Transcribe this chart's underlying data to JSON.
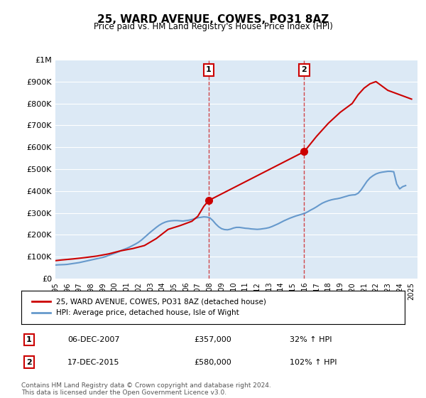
{
  "title": "25, WARD AVENUE, COWES, PO31 8AZ",
  "subtitle": "Price paid vs. HM Land Registry's House Price Index (HPI)",
  "bg_color": "#dce9f5",
  "plot_bg_color": "#dce9f5",
  "red_line_color": "#cc0000",
  "blue_line_color": "#6699cc",
  "marker_color": "#cc0000",
  "marker_box_color": "#cc0000",
  "ylim": [
    0,
    1000000
  ],
  "xlim_start": 1995.0,
  "xlim_end": 2025.5,
  "yticks": [
    0,
    100000,
    200000,
    300000,
    400000,
    500000,
    600000,
    700000,
    800000,
    900000,
    1000000
  ],
  "ytick_labels": [
    "£0",
    "£100K",
    "£200K",
    "£300K",
    "£400K",
    "£500K",
    "£600K",
    "£700K",
    "£800K",
    "£900K",
    "£1M"
  ],
  "xtick_labels": [
    "1995",
    "1996",
    "1997",
    "1998",
    "1999",
    "2000",
    "2001",
    "2002",
    "2003",
    "2004",
    "2005",
    "2006",
    "2007",
    "2008",
    "2009",
    "2010",
    "2011",
    "2012",
    "2013",
    "2014",
    "2015",
    "2016",
    "2017",
    "2018",
    "2019",
    "2020",
    "2021",
    "2022",
    "2023",
    "2024",
    "2025"
  ],
  "marker1_x": 2007.92,
  "marker1_y": 357000,
  "marker1_label": "1",
  "marker1_date": "06-DEC-2007",
  "marker1_price": "£357,000",
  "marker1_hpi": "32% ↑ HPI",
  "marker2_x": 2015.96,
  "marker2_y": 580000,
  "marker2_label": "2",
  "marker2_date": "17-DEC-2015",
  "marker2_price": "£580,000",
  "marker2_hpi": "102% ↑ HPI",
  "legend_line1": "25, WARD AVENUE, COWES, PO31 8AZ (detached house)",
  "legend_line2": "HPI: Average price, detached house, Isle of Wight",
  "footer": "Contains HM Land Registry data © Crown copyright and database right 2024.\nThis data is licensed under the Open Government Licence v3.0.",
  "hpi_data_x": [
    1995.0,
    1995.25,
    1995.5,
    1995.75,
    1996.0,
    1996.25,
    1996.5,
    1996.75,
    1997.0,
    1997.25,
    1997.5,
    1997.75,
    1998.0,
    1998.25,
    1998.5,
    1998.75,
    1999.0,
    1999.25,
    1999.5,
    1999.75,
    2000.0,
    2000.25,
    2000.5,
    2000.75,
    2001.0,
    2001.25,
    2001.5,
    2001.75,
    2002.0,
    2002.25,
    2002.5,
    2002.75,
    2003.0,
    2003.25,
    2003.5,
    2003.75,
    2004.0,
    2004.25,
    2004.5,
    2004.75,
    2005.0,
    2005.25,
    2005.5,
    2005.75,
    2006.0,
    2006.25,
    2006.5,
    2006.75,
    2007.0,
    2007.25,
    2007.5,
    2007.75,
    2008.0,
    2008.25,
    2008.5,
    2008.75,
    2009.0,
    2009.25,
    2009.5,
    2009.75,
    2010.0,
    2010.25,
    2010.5,
    2010.75,
    2011.0,
    2011.25,
    2011.5,
    2011.75,
    2012.0,
    2012.25,
    2012.5,
    2012.75,
    2013.0,
    2013.25,
    2013.5,
    2013.75,
    2014.0,
    2014.25,
    2014.5,
    2014.75,
    2015.0,
    2015.25,
    2015.5,
    2015.75,
    2016.0,
    2016.25,
    2016.5,
    2016.75,
    2017.0,
    2017.25,
    2017.5,
    2017.75,
    2018.0,
    2018.25,
    2018.5,
    2018.75,
    2019.0,
    2019.25,
    2019.5,
    2019.75,
    2020.0,
    2020.25,
    2020.5,
    2020.75,
    2021.0,
    2021.25,
    2021.5,
    2021.75,
    2022.0,
    2022.25,
    2022.5,
    2022.75,
    2023.0,
    2023.25,
    2023.5,
    2023.75,
    2024.0,
    2024.25,
    2024.5
  ],
  "hpi_data_y": [
    62000,
    63000,
    63500,
    64000,
    65000,
    67000,
    69000,
    71000,
    73000,
    76000,
    79000,
    82000,
    85000,
    88000,
    91000,
    94000,
    97000,
    101000,
    106000,
    111000,
    116000,
    121000,
    127000,
    133000,
    138000,
    144000,
    151000,
    158000,
    166000,
    176000,
    188000,
    200000,
    212000,
    223000,
    234000,
    244000,
    252000,
    258000,
    262000,
    264000,
    265000,
    265000,
    264000,
    263000,
    265000,
    267000,
    270000,
    274000,
    278000,
    280000,
    282000,
    281000,
    278000,
    266000,
    250000,
    237000,
    228000,
    224000,
    223000,
    226000,
    231000,
    234000,
    234000,
    232000,
    230000,
    229000,
    227000,
    226000,
    225000,
    226000,
    228000,
    230000,
    233000,
    238000,
    244000,
    250000,
    257000,
    264000,
    270000,
    276000,
    281000,
    286000,
    290000,
    294000,
    298000,
    305000,
    313000,
    320000,
    328000,
    337000,
    345000,
    351000,
    356000,
    360000,
    363000,
    365000,
    368000,
    372000,
    376000,
    380000,
    382000,
    383000,
    390000,
    405000,
    425000,
    445000,
    460000,
    470000,
    478000,
    483000,
    486000,
    488000,
    490000,
    490000,
    488000,
    432000,
    410000,
    420000,
    425000
  ],
  "price_data_x": [
    1995.5,
    2000.5,
    2007.92,
    2015.96
  ],
  "price_data_y": [
    85000,
    127000,
    357000,
    580000
  ],
  "price_line_extra_x": [
    2015.96,
    2017.0,
    2018.0,
    2019.0,
    2020.0,
    2020.5,
    2021.0,
    2021.5,
    2022.0,
    2022.5,
    2023.0,
    2023.5,
    2024.0,
    2024.5,
    2025.0
  ],
  "price_line_extra_y": [
    580000,
    650000,
    710000,
    760000,
    800000,
    840000,
    870000,
    890000,
    900000,
    880000,
    860000,
    850000,
    840000,
    830000,
    820000
  ]
}
